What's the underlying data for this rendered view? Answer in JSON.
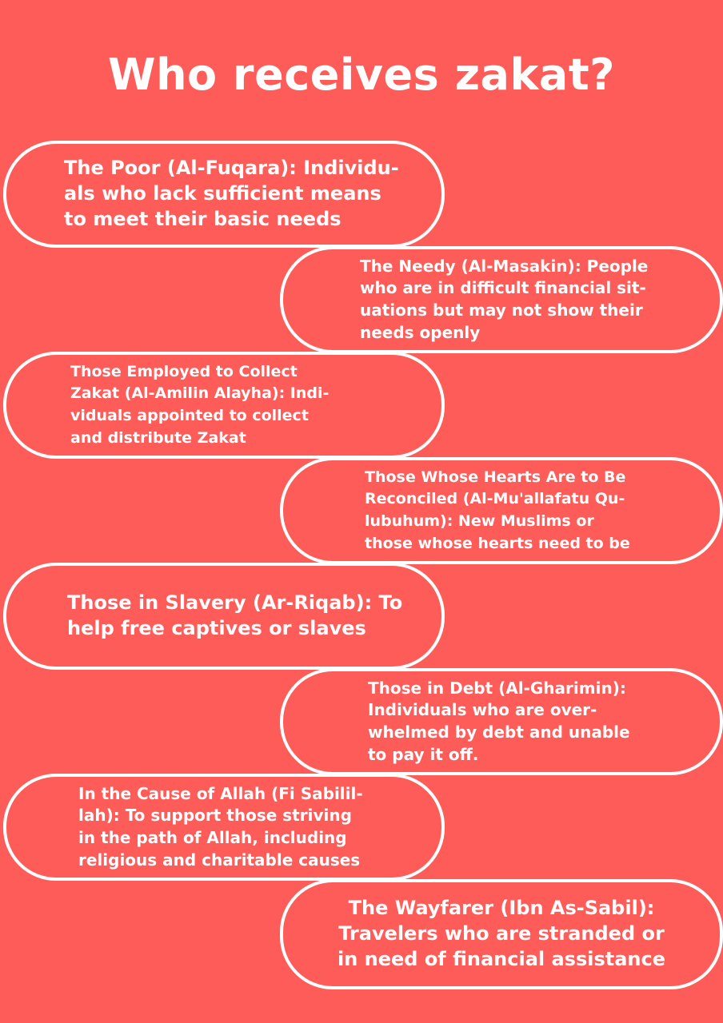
{
  "title": "Who receives zakat?",
  "recipients": [
    {
      "text": "The Poor (Al-Fuqara): Individu-\nals who lack sufficient means\nto meet their basic needs"
    },
    {
      "text": "The Needy (Al-Masakin): People\nwho are in difficult financial sit-\nuations but may not show their\nneeds openly"
    },
    {
      "text": "Those Employed to Collect\nZakat (Al-Amilin Alayha): Indi-\nviduals appointed to collect\nand distribute Zakat"
    },
    {
      "text": "Those Whose Hearts Are to Be\nReconciled (Al-Mu'allafatu Qu-\nlubuhum): New Muslims or\nthose whose hearts need to be"
    },
    {
      "text": "Those in Slavery (Ar-Riqab): To\nhelp free captives or slaves"
    },
    {
      "text": "Those in Debt (Al-Gharimin):\nIndividuals who are over-\nwhelmed by debt and unable\nto pay it off."
    },
    {
      "text": "In the Cause of Allah (Fi Sabilil-\nlah): To support those striving\nin the path of Allah, including\nreligious and charitable causes"
    },
    {
      "text": "The Wayfarer (Ibn As-Sabil):\nTravelers who are stranded or\nin need of financial assistance"
    }
  ]
}
